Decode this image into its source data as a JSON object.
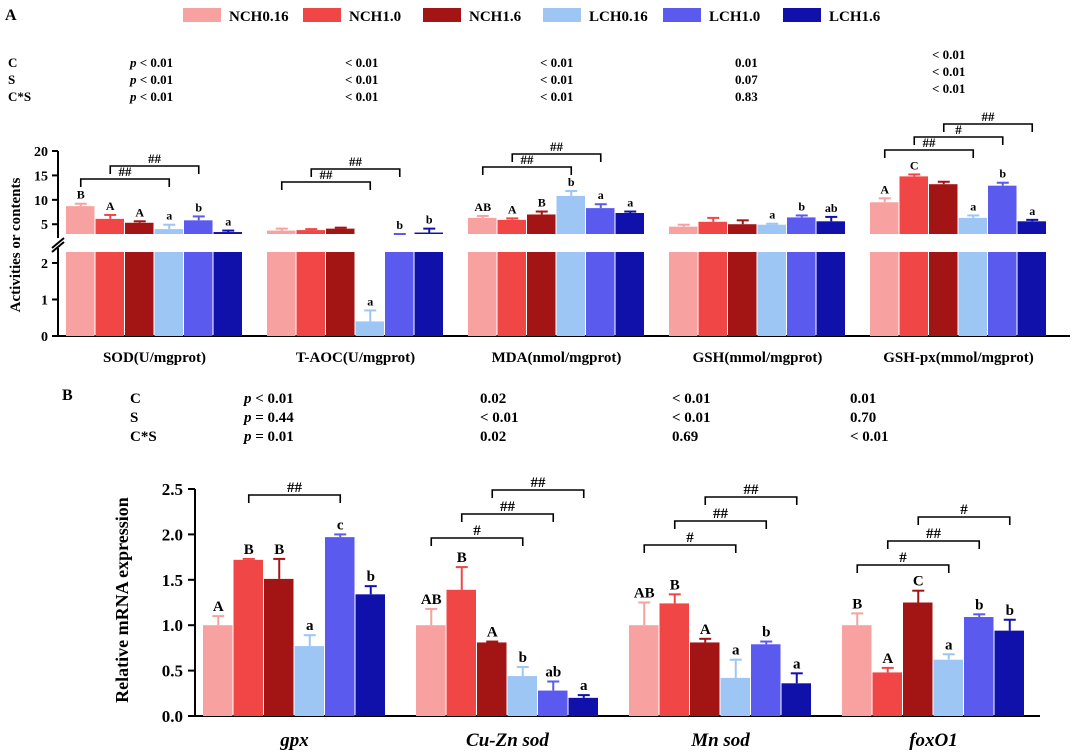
{
  "legend": [
    {
      "name": "NCH0.16",
      "color": "#F7A1A1"
    },
    {
      "name": "NCH1.0",
      "color": "#F04646"
    },
    {
      "name": "NCH1.6",
      "color": "#A31515"
    },
    {
      "name": "LCH0.16",
      "color": "#9DC6F5"
    },
    {
      "name": "LCH1.0",
      "color": "#5A5AEE"
    },
    {
      "name": "LCH1.6",
      "color": "#1010AA"
    }
  ],
  "panel_a": {
    "label": "A",
    "stats_rows": [
      "C",
      "S",
      "C*S"
    ],
    "stats": [
      [
        "p < 0.01",
        "p < 0.01",
        "p < 0.01"
      ],
      [
        "< 0.01",
        "< 0.01",
        "< 0.01"
      ],
      [
        "< 0.01",
        "< 0.01",
        "< 0.01"
      ],
      [
        "0.01",
        "0.07",
        "0.83"
      ],
      [
        "< 0.01",
        "< 0.01",
        "< 0.01"
      ]
    ]
  },
  "panel_b": {
    "label": "B",
    "stats_rows": [
      "C",
      "S",
      "C*S"
    ],
    "stats": [
      [
        "p < 0.01",
        "p = 0.44",
        "p = 0.01"
      ],
      [
        "0.02",
        "< 0.01",
        "0.02"
      ],
      [
        "< 0.01",
        "< 0.01",
        "0.69"
      ],
      [
        "0.01",
        "0.70",
        "< 0.01"
      ]
    ]
  },
  "chart_data": [
    {
      "type": "bar",
      "title": "",
      "ylabel": "Activities or contents",
      "y_axis_break": true,
      "ylim_lower": [
        0,
        2.3
      ],
      "ylim_upper": [
        3,
        20
      ],
      "yticks_lower": [
        "0",
        "1",
        "2"
      ],
      "yticks_upper": [
        "5",
        "10",
        "15",
        "20"
      ],
      "categories": [
        "SOD(U/mgprot)",
        "T-AOC(U/mgprot)",
        "MDA(nmol/mgprot)",
        "GSH(mmol/mgprot)",
        "GSH-px(mmol/mgprot)"
      ],
      "series": [
        {
          "name": "NCH0.16",
          "values": [
            8.7,
            3.7,
            6.3,
            4.5,
            9.5
          ],
          "errors": [
            0.5,
            0.4,
            0.4,
            0.4,
            0.8
          ],
          "letters": [
            "B",
            "",
            "AB",
            "",
            "A"
          ]
        },
        {
          "name": "NCH1.0",
          "values": [
            6.1,
            3.8,
            5.9,
            5.5,
            14.8
          ],
          "errors": [
            0.8,
            0.2,
            0.3,
            0.8,
            0.4
          ],
          "letters": [
            "A",
            "",
            "A",
            "",
            "C"
          ]
        },
        {
          "name": "NCH1.6",
          "values": [
            5.3,
            4.1,
            7.0,
            5.0,
            13.2
          ],
          "errors": [
            0.3,
            0.2,
            0.6,
            0.8,
            0.5
          ],
          "letters": [
            "A",
            "",
            "B",
            "",
            ""
          ]
        },
        {
          "name": "LCH0.16",
          "values": [
            4.0,
            0.4,
            10.8,
            4.9,
            6.3
          ],
          "errors": [
            0.9,
            0.3,
            1.0,
            0.2,
            0.5
          ],
          "letters": [
            "a",
            "a",
            "b",
            "a",
            "a"
          ]
        },
        {
          "name": "LCH1.0",
          "values": [
            5.8,
            2.8,
            8.3,
            6.4,
            12.9
          ],
          "errors": [
            0.8,
            0.2,
            0.8,
            0.4,
            0.6
          ],
          "letters": [
            "b",
            "b",
            "a",
            "b",
            "b"
          ]
        },
        {
          "name": "LCH1.6",
          "values": [
            3.4,
            3.3,
            7.3,
            5.6,
            5.6
          ],
          "errors": [
            0.3,
            0.8,
            0.3,
            0.9,
            0.3
          ],
          "letters": [
            "a",
            "b",
            "a",
            "ab",
            "a"
          ]
        }
      ],
      "labels_above_bracket": [
        "B",
        "",
        "",
        "",
        "B"
      ],
      "brackets": [
        {
          "category": 0,
          "from": 0,
          "to": 3,
          "label": "##"
        },
        {
          "category": 0,
          "from": 1,
          "to": 4,
          "label": "##"
        },
        {
          "category": 1,
          "from": 0,
          "to": 3,
          "label": "##"
        },
        {
          "category": 1,
          "from": 1,
          "to": 4,
          "label": "##"
        },
        {
          "category": 2,
          "from": 0,
          "to": 3,
          "label": "##"
        },
        {
          "category": 2,
          "from": 1,
          "to": 4,
          "label": "##"
        },
        {
          "category": 4,
          "from": 0,
          "to": 3,
          "label": "##"
        },
        {
          "category": 4,
          "from": 1,
          "to": 4,
          "label": "#"
        },
        {
          "category": 4,
          "from": 2,
          "to": 5,
          "label": "##"
        }
      ]
    },
    {
      "type": "bar",
      "title": "",
      "ylabel": "Relative mRNA expression",
      "ylim": [
        0,
        2.5
      ],
      "yticks": [
        "0.0",
        "0.5",
        "1.0",
        "1.5",
        "2.0",
        "2.5"
      ],
      "categories": [
        "gpx",
        "Cu-Zn sod",
        "Mn sod",
        "foxO1"
      ],
      "series": [
        {
          "name": "NCH0.16",
          "values": [
            1.0,
            1.0,
            1.0,
            1.0
          ],
          "errors": [
            0.1,
            0.18,
            0.25,
            0.13
          ],
          "letters": [
            "A",
            "AB",
            "AB",
            "B"
          ]
        },
        {
          "name": "NCH1.0",
          "values": [
            1.72,
            1.39,
            1.24,
            0.48
          ],
          "errors": [
            0.01,
            0.25,
            0.1,
            0.05
          ],
          "letters": [
            "B",
            "B",
            "B",
            "A"
          ]
        },
        {
          "name": "NCH1.6",
          "values": [
            1.51,
            0.81,
            0.81,
            1.25
          ],
          "errors": [
            0.22,
            0.01,
            0.04,
            0.13
          ],
          "letters": [
            "B",
            "A",
            "A",
            "C"
          ]
        },
        {
          "name": "LCH0.16",
          "values": [
            0.77,
            0.44,
            0.42,
            0.62
          ],
          "errors": [
            0.12,
            0.1,
            0.2,
            0.06
          ],
          "letters": [
            "a",
            "b",
            "a",
            "a"
          ]
        },
        {
          "name": "LCH1.0",
          "values": [
            1.97,
            0.28,
            0.79,
            1.09
          ],
          "errors": [
            0.03,
            0.1,
            0.03,
            0.03
          ],
          "letters": [
            "c",
            "ab",
            "b",
            "b"
          ]
        },
        {
          "name": "LCH1.6",
          "values": [
            1.34,
            0.2,
            0.36,
            0.94
          ],
          "errors": [
            0.09,
            0.03,
            0.11,
            0.12
          ],
          "letters": [
            "b",
            "a",
            "a",
            "b"
          ]
        }
      ],
      "brackets": [
        {
          "category": 0,
          "from": 1,
          "to": 4,
          "label": "##"
        },
        {
          "category": 1,
          "from": 0,
          "to": 3,
          "label": "#"
        },
        {
          "category": 1,
          "from": 1,
          "to": 4,
          "label": "##"
        },
        {
          "category": 1,
          "from": 2,
          "to": 5,
          "label": "##"
        },
        {
          "category": 2,
          "from": 0,
          "to": 3,
          "label": "#"
        },
        {
          "category": 2,
          "from": 1,
          "to": 4,
          "label": "##"
        },
        {
          "category": 2,
          "from": 2,
          "to": 5,
          "label": "##"
        },
        {
          "category": 3,
          "from": 0,
          "to": 3,
          "label": "#"
        },
        {
          "category": 3,
          "from": 1,
          "to": 4,
          "label": "##"
        },
        {
          "category": 3,
          "from": 2,
          "to": 5,
          "label": "#"
        }
      ]
    }
  ]
}
